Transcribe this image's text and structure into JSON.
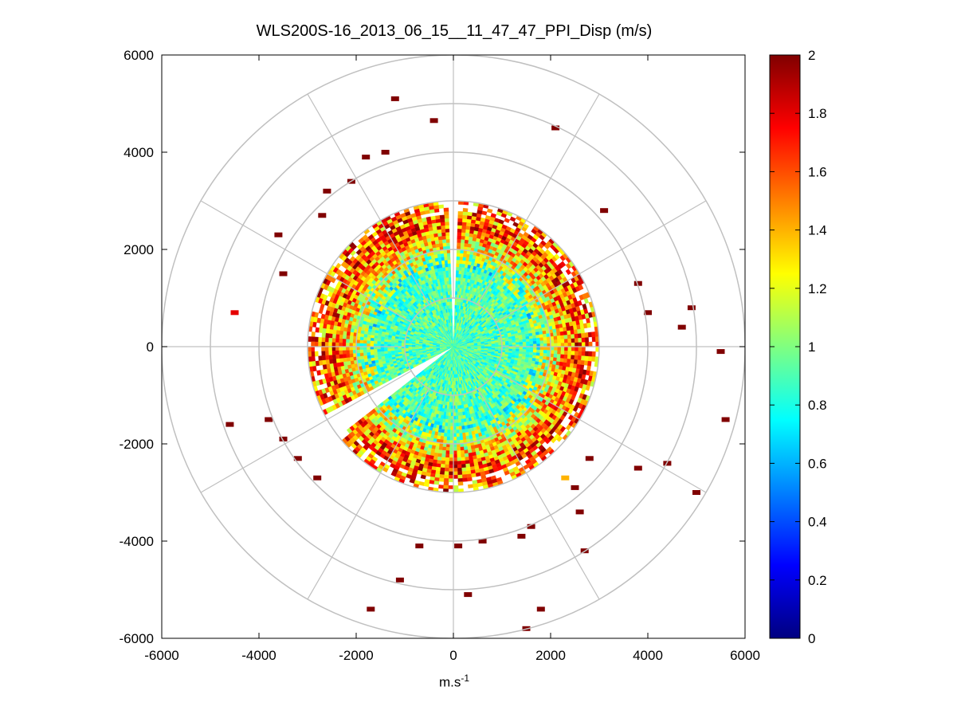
{
  "chart_data": {
    "type": "heatmap",
    "subtype": "polar-ppi-scan",
    "title": "WLS200S-16_2013_06_15__11_47_47_PPI_Disp (m/s)",
    "xlabel_base": "m.s",
    "xlabel_exponent": "-1",
    "ylabel": "",
    "xlim": [
      -6000,
      6000
    ],
    "ylim": [
      -6000,
      6000
    ],
    "xticks": [
      -6000,
      -4000,
      -2000,
      0,
      2000,
      4000,
      6000
    ],
    "yticks": [
      6000,
      4000,
      2000,
      0,
      -2000,
      -4000,
      -6000
    ],
    "grid": true,
    "polar_grid": {
      "rings": [
        1000,
        2000,
        3000,
        4000,
        5000,
        6000
      ],
      "spokes_deg": [
        0,
        30,
        60,
        90,
        120,
        150,
        180,
        210,
        240,
        270,
        300,
        330
      ],
      "color": "#c0c0c0"
    },
    "colormap": "jet",
    "colorbar": {
      "range": [
        0,
        2
      ],
      "ticks": [
        0,
        0.2,
        0.4,
        0.6,
        0.8,
        1,
        1.2,
        1.4,
        1.6,
        1.8,
        2
      ]
    },
    "scan": {
      "radius_inner": 0,
      "radius_outer": 3000,
      "center_value": 0.9,
      "edge_value": 2.0,
      "gap_sectors_deg": [
        [
          88,
          92
        ],
        [
          209,
          217
        ]
      ],
      "sparse_points": [
        {
          "x": -1200,
          "y": 5100,
          "v": 2
        },
        {
          "x": -400,
          "y": 4650,
          "v": 2
        },
        {
          "x": 2100,
          "y": 4500,
          "v": 2
        },
        {
          "x": -1400,
          "y": 4000,
          "v": 2
        },
        {
          "x": -1800,
          "y": 3900,
          "v": 2
        },
        {
          "x": -4500,
          "y": 700,
          "v": 1.8
        },
        {
          "x": -2600,
          "y": 3200,
          "v": 2
        },
        {
          "x": 4900,
          "y": 800,
          "v": 2
        },
        {
          "x": 4700,
          "y": 400,
          "v": 2
        },
        {
          "x": 5500,
          "y": -100,
          "v": 2
        },
        {
          "x": 5600,
          "y": -1500,
          "v": 2
        },
        {
          "x": 5000,
          "y": -3000,
          "v": 2
        },
        {
          "x": 4400,
          "y": -2400,
          "v": 2
        },
        {
          "x": 3800,
          "y": -2500,
          "v": 2
        },
        {
          "x": 2700,
          "y": -4200,
          "v": 2
        },
        {
          "x": 1800,
          "y": -5400,
          "v": 2
        },
        {
          "x": 1500,
          "y": -5800,
          "v": 2
        },
        {
          "x": 300,
          "y": -5100,
          "v": 2
        },
        {
          "x": -1100,
          "y": -4800,
          "v": 2
        },
        {
          "x": -1700,
          "y": -5400,
          "v": 2
        },
        {
          "x": -3800,
          "y": -1500,
          "v": 2
        },
        {
          "x": -3500,
          "y": -1900,
          "v": 2
        },
        {
          "x": -2800,
          "y": -2700,
          "v": 2
        },
        {
          "x": -3600,
          "y": 2300,
          "v": 2
        },
        {
          "x": -3500,
          "y": 1500,
          "v": 2
        },
        {
          "x": 3100,
          "y": 2800,
          "v": 2
        },
        {
          "x": 3800,
          "y": 1300,
          "v": 2
        },
        {
          "x": 4000,
          "y": 700,
          "v": 2
        },
        {
          "x": 2300,
          "y": -2700,
          "v": 1.4
        },
        {
          "x": 2500,
          "y": -2900,
          "v": 2
        },
        {
          "x": 2800,
          "y": -2300,
          "v": 2
        },
        {
          "x": 2600,
          "y": -3400,
          "v": 2
        },
        {
          "x": 1600,
          "y": -3700,
          "v": 2
        },
        {
          "x": 1400,
          "y": -3900,
          "v": 2
        },
        {
          "x": -700,
          "y": -4100,
          "v": 2
        },
        {
          "x": 100,
          "y": -4100,
          "v": 2
        },
        {
          "x": 600,
          "y": -4000,
          "v": 2
        },
        {
          "x": -3200,
          "y": -2300,
          "v": 2
        },
        {
          "x": -4600,
          "y": -1600,
          "v": 2
        },
        {
          "x": -2700,
          "y": 2700,
          "v": 2
        },
        {
          "x": -2100,
          "y": 3400,
          "v": 2
        }
      ]
    }
  }
}
